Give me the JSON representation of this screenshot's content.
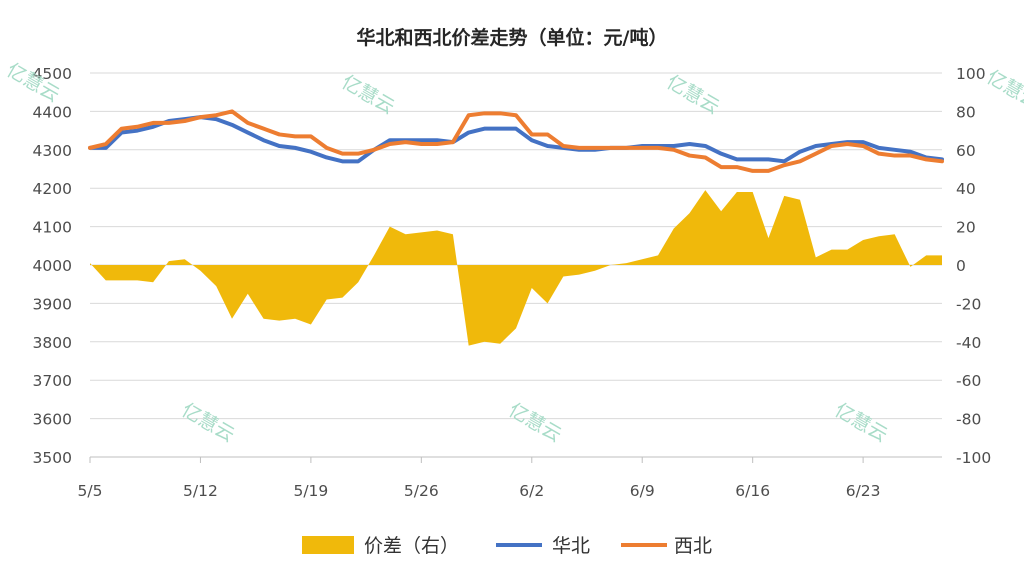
{
  "chart_data": {
    "type": "line",
    "title": "华北和西北价差走势（单位：元/吨）",
    "x": [
      "5/5",
      "5/6",
      "5/7",
      "5/8",
      "5/9",
      "5/10",
      "5/11",
      "5/12",
      "5/13",
      "5/14",
      "5/15",
      "5/16",
      "5/17",
      "5/18",
      "5/19",
      "5/20",
      "5/21",
      "5/22",
      "5/23",
      "5/24",
      "5/25",
      "5/26",
      "5/27",
      "5/28",
      "5/29",
      "5/30",
      "5/31",
      "6/1",
      "6/2",
      "6/3",
      "6/4",
      "6/5",
      "6/6",
      "6/7",
      "6/8",
      "6/9",
      "6/10",
      "6/11",
      "6/12",
      "6/13",
      "6/14",
      "6/15",
      "6/16",
      "6/17",
      "6/18",
      "6/19",
      "6/20",
      "6/21",
      "6/22",
      "6/23",
      "6/24",
      "6/25",
      "6/26",
      "6/27",
      "6/28"
    ],
    "x_ticks": [
      "5/5",
      "5/12",
      "5/19",
      "5/26",
      "6/2",
      "6/9",
      "6/16",
      "6/23"
    ],
    "y_left": {
      "min": 3500,
      "max": 4500,
      "step": 100,
      "ticks": [
        "4500",
        "4400",
        "4300",
        "4200",
        "4100",
        "4000",
        "3900",
        "3800",
        "3700",
        "3600",
        "3500"
      ]
    },
    "y_right": {
      "min": -100,
      "max": 100,
      "step": 20,
      "ticks": [
        "100",
        "80",
        "60",
        "40",
        "20",
        "0",
        "-20",
        "-40",
        "-60",
        "-80",
        "-100"
      ]
    },
    "series": [
      {
        "name": "价差（右）",
        "kind": "area",
        "axis": "right",
        "color": "#f0b90b",
        "values": [
          1,
          -8,
          -8,
          -8,
          -9,
          2,
          3,
          -3,
          -11,
          -28,
          -15,
          -28,
          -29,
          -28,
          -31,
          -18,
          -17,
          -9,
          5,
          20,
          16,
          17,
          18,
          16,
          -42,
          -40,
          -41,
          -33,
          -12,
          -20,
          -6,
          -5,
          -3,
          0,
          1,
          3,
          5,
          19,
          27,
          39,
          28,
          38,
          38,
          14,
          36,
          34,
          4,
          8,
          8,
          13,
          15,
          16,
          -1,
          5,
          5
        ]
      },
      {
        "name": "华北",
        "kind": "line",
        "axis": "left",
        "color": "#4472c4",
        "values": [
          4305,
          4305,
          4345,
          4350,
          4360,
          4375,
          4380,
          4385,
          4380,
          4365,
          4345,
          4325,
          4310,
          4305,
          4295,
          4280,
          4270,
          4270,
          4300,
          4325,
          4325,
          4325,
          4325,
          4320,
          4345,
          4355,
          4355,
          4355,
          4325,
          4310,
          4305,
          4300,
          4300,
          4305,
          4305,
          4310,
          4310,
          4310,
          4315,
          4310,
          4290,
          4275,
          4275,
          4275,
          4270,
          4295,
          4310,
          4315,
          4320,
          4320,
          4305,
          4300,
          4295,
          4280,
          4275
        ]
      },
      {
        "name": "西北",
        "kind": "line",
        "axis": "left",
        "color": "#ed7d31",
        "values": [
          4305,
          4315,
          4355,
          4360,
          4370,
          4370,
          4375,
          4385,
          4390,
          4400,
          4370,
          4355,
          4340,
          4335,
          4335,
          4305,
          4290,
          4290,
          4300,
          4315,
          4320,
          4315,
          4315,
          4320,
          4390,
          4395,
          4395,
          4390,
          4340,
          4340,
          4310,
          4305,
          4305,
          4305,
          4305,
          4305,
          4305,
          4300,
          4285,
          4280,
          4255,
          4255,
          4245,
          4245,
          4260,
          4270,
          4290,
          4310,
          4315,
          4310,
          4290,
          4285,
          4285,
          4275,
          4270
        ]
      }
    ],
    "legend_placement": "bottom-center",
    "grid": "horizontal",
    "watermark": "亿慧云"
  }
}
